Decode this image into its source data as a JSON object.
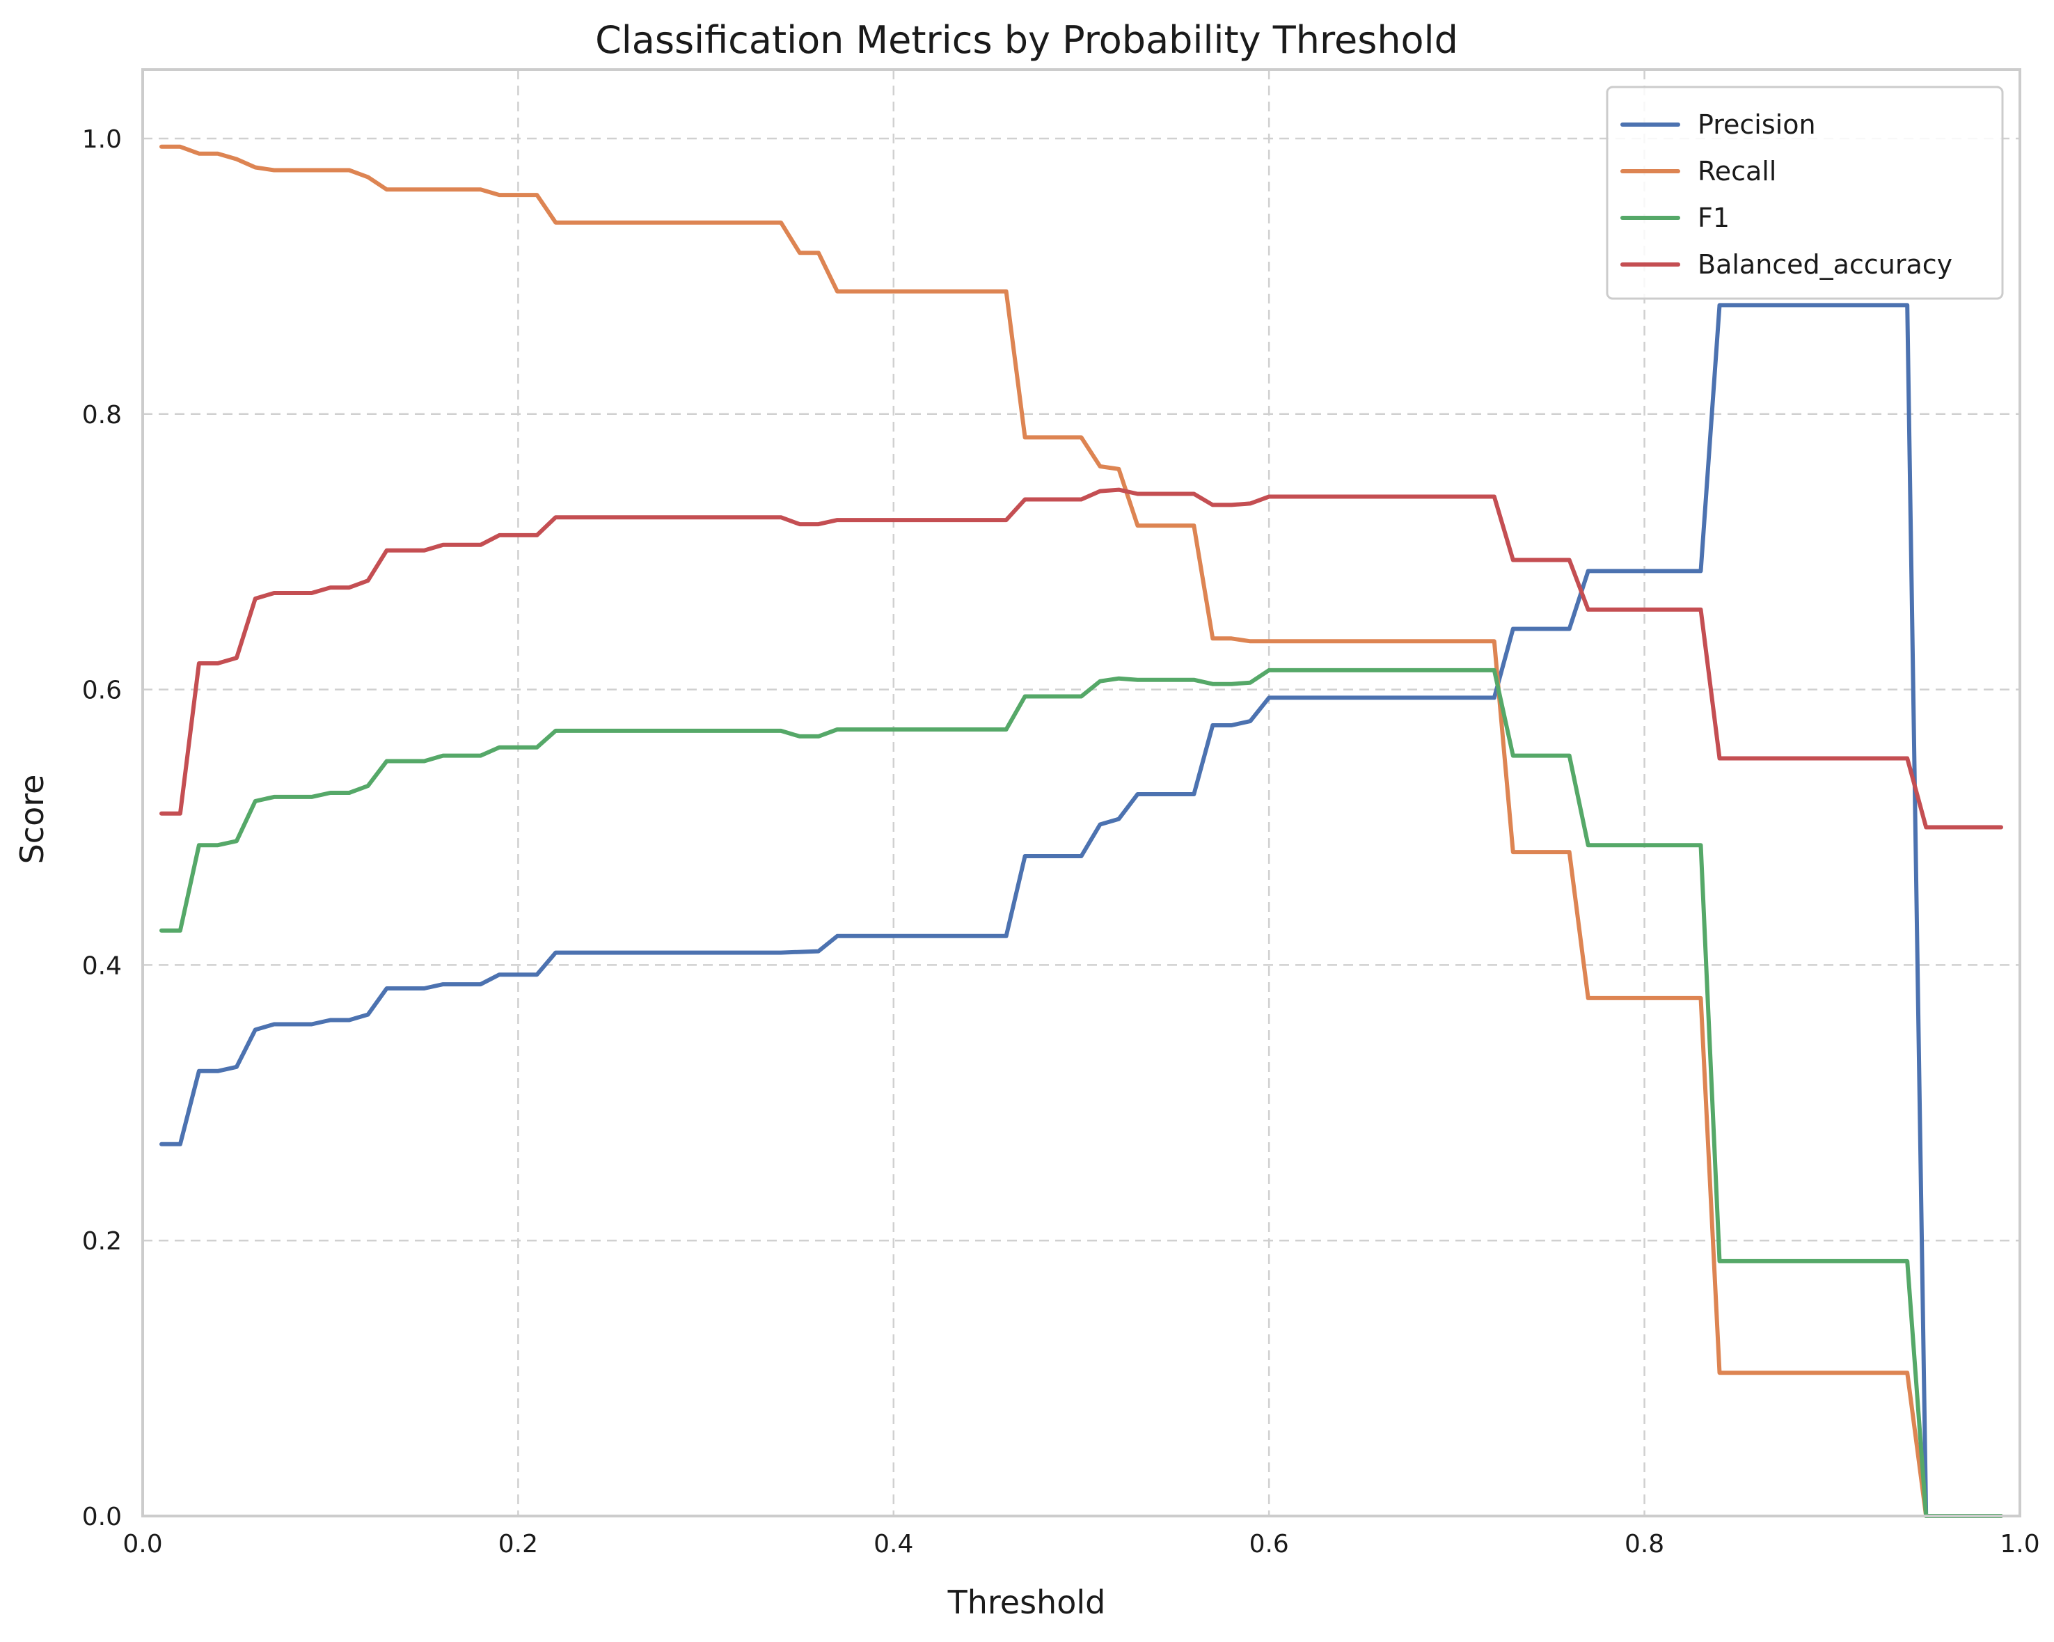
{
  "chart_data": {
    "type": "line",
    "title": "Classification Metrics by Probability Threshold",
    "xlabel": "Threshold",
    "ylabel": "Score",
    "xlim": [
      0.0,
      1.0
    ],
    "ylim": [
      0.0,
      1.05
    ],
    "xticks": [
      "0.0",
      "0.2",
      "0.4",
      "0.6",
      "0.8",
      "1.0"
    ],
    "yticks": [
      "0.0",
      "0.2",
      "0.4",
      "0.6",
      "0.8",
      "1.0"
    ],
    "grid": true,
    "legend_position": "top-right",
    "series": [
      {
        "name": "Precision",
        "color": "#4c72b0",
        "points": [
          [
            0.01,
            0.27
          ],
          [
            0.02,
            0.27
          ],
          [
            0.03,
            0.323
          ],
          [
            0.04,
            0.323
          ],
          [
            0.05,
            0.326
          ],
          [
            0.06,
            0.353
          ],
          [
            0.07,
            0.357
          ],
          [
            0.09,
            0.357
          ],
          [
            0.1,
            0.36
          ],
          [
            0.11,
            0.36
          ],
          [
            0.12,
            0.364
          ],
          [
            0.13,
            0.383
          ],
          [
            0.15,
            0.383
          ],
          [
            0.16,
            0.386
          ],
          [
            0.18,
            0.386
          ],
          [
            0.19,
            0.393
          ],
          [
            0.21,
            0.393
          ],
          [
            0.22,
            0.409
          ],
          [
            0.34,
            0.409
          ],
          [
            0.36,
            0.41
          ],
          [
            0.37,
            0.421
          ],
          [
            0.46,
            0.421
          ],
          [
            0.47,
            0.479
          ],
          [
            0.5,
            0.479
          ],
          [
            0.51,
            0.502
          ],
          [
            0.52,
            0.506
          ],
          [
            0.53,
            0.524
          ],
          [
            0.56,
            0.524
          ],
          [
            0.57,
            0.574
          ],
          [
            0.58,
            0.574
          ],
          [
            0.59,
            0.577
          ],
          [
            0.6,
            0.594
          ],
          [
            0.72,
            0.594
          ],
          [
            0.73,
            0.644
          ],
          [
            0.76,
            0.644
          ],
          [
            0.77,
            0.686
          ],
          [
            0.83,
            0.686
          ],
          [
            0.84,
            0.879
          ],
          [
            0.94,
            0.879
          ],
          [
            0.95,
            0.0
          ],
          [
            0.99,
            0.0
          ]
        ]
      },
      {
        "name": "Recall",
        "color": "#dd8452",
        "points": [
          [
            0.01,
            0.994
          ],
          [
            0.02,
            0.994
          ],
          [
            0.03,
            0.989
          ],
          [
            0.04,
            0.989
          ],
          [
            0.05,
            0.985
          ],
          [
            0.06,
            0.979
          ],
          [
            0.07,
            0.977
          ],
          [
            0.11,
            0.977
          ],
          [
            0.12,
            0.972
          ],
          [
            0.13,
            0.963
          ],
          [
            0.18,
            0.963
          ],
          [
            0.19,
            0.959
          ],
          [
            0.21,
            0.959
          ],
          [
            0.22,
            0.939
          ],
          [
            0.34,
            0.939
          ],
          [
            0.35,
            0.917
          ],
          [
            0.36,
            0.917
          ],
          [
            0.37,
            0.889
          ],
          [
            0.46,
            0.889
          ],
          [
            0.47,
            0.783
          ],
          [
            0.5,
            0.783
          ],
          [
            0.51,
            0.762
          ],
          [
            0.52,
            0.76
          ],
          [
            0.53,
            0.719
          ],
          [
            0.56,
            0.719
          ],
          [
            0.57,
            0.637
          ],
          [
            0.58,
            0.637
          ],
          [
            0.59,
            0.635
          ],
          [
            0.72,
            0.635
          ],
          [
            0.73,
            0.482
          ],
          [
            0.76,
            0.482
          ],
          [
            0.77,
            0.376
          ],
          [
            0.83,
            0.376
          ],
          [
            0.84,
            0.104
          ],
          [
            0.94,
            0.104
          ],
          [
            0.95,
            0.0
          ],
          [
            0.99,
            0.0
          ]
        ]
      },
      {
        "name": "F1",
        "color": "#55a868",
        "points": [
          [
            0.01,
            0.425
          ],
          [
            0.02,
            0.425
          ],
          [
            0.03,
            0.487
          ],
          [
            0.04,
            0.487
          ],
          [
            0.05,
            0.49
          ],
          [
            0.06,
            0.519
          ],
          [
            0.07,
            0.522
          ],
          [
            0.09,
            0.522
          ],
          [
            0.1,
            0.525
          ],
          [
            0.11,
            0.525
          ],
          [
            0.12,
            0.53
          ],
          [
            0.13,
            0.548
          ],
          [
            0.15,
            0.548
          ],
          [
            0.16,
            0.552
          ],
          [
            0.18,
            0.552
          ],
          [
            0.19,
            0.558
          ],
          [
            0.21,
            0.558
          ],
          [
            0.22,
            0.57
          ],
          [
            0.34,
            0.57
          ],
          [
            0.35,
            0.566
          ],
          [
            0.36,
            0.566
          ],
          [
            0.37,
            0.571
          ],
          [
            0.46,
            0.571
          ],
          [
            0.47,
            0.595
          ],
          [
            0.5,
            0.595
          ],
          [
            0.51,
            0.606
          ],
          [
            0.52,
            0.608
          ],
          [
            0.53,
            0.607
          ],
          [
            0.56,
            0.607
          ],
          [
            0.57,
            0.604
          ],
          [
            0.58,
            0.604
          ],
          [
            0.59,
            0.605
          ],
          [
            0.6,
            0.614
          ],
          [
            0.72,
            0.614
          ],
          [
            0.73,
            0.552
          ],
          [
            0.76,
            0.552
          ],
          [
            0.77,
            0.487
          ],
          [
            0.83,
            0.487
          ],
          [
            0.84,
            0.185
          ],
          [
            0.94,
            0.185
          ],
          [
            0.95,
            0.0
          ],
          [
            0.99,
            0.0
          ]
        ]
      },
      {
        "name": "Balanced_accuracy",
        "color": "#c44e52",
        "points": [
          [
            0.01,
            0.51
          ],
          [
            0.02,
            0.51
          ],
          [
            0.03,
            0.619
          ],
          [
            0.04,
            0.619
          ],
          [
            0.05,
            0.623
          ],
          [
            0.06,
            0.666
          ],
          [
            0.07,
            0.67
          ],
          [
            0.09,
            0.67
          ],
          [
            0.1,
            0.674
          ],
          [
            0.11,
            0.674
          ],
          [
            0.12,
            0.679
          ],
          [
            0.13,
            0.701
          ],
          [
            0.15,
            0.701
          ],
          [
            0.16,
            0.705
          ],
          [
            0.18,
            0.705
          ],
          [
            0.19,
            0.712
          ],
          [
            0.21,
            0.712
          ],
          [
            0.22,
            0.725
          ],
          [
            0.34,
            0.725
          ],
          [
            0.35,
            0.72
          ],
          [
            0.36,
            0.72
          ],
          [
            0.37,
            0.723
          ],
          [
            0.46,
            0.723
          ],
          [
            0.47,
            0.738
          ],
          [
            0.5,
            0.738
          ],
          [
            0.51,
            0.744
          ],
          [
            0.52,
            0.745
          ],
          [
            0.53,
            0.742
          ],
          [
            0.56,
            0.742
          ],
          [
            0.57,
            0.734
          ],
          [
            0.58,
            0.734
          ],
          [
            0.59,
            0.735
          ],
          [
            0.6,
            0.74
          ],
          [
            0.72,
            0.74
          ],
          [
            0.73,
            0.694
          ],
          [
            0.76,
            0.694
          ],
          [
            0.77,
            0.658
          ],
          [
            0.83,
            0.658
          ],
          [
            0.84,
            0.55
          ],
          [
            0.94,
            0.55
          ],
          [
            0.95,
            0.5
          ],
          [
            0.99,
            0.5
          ]
        ]
      }
    ]
  }
}
